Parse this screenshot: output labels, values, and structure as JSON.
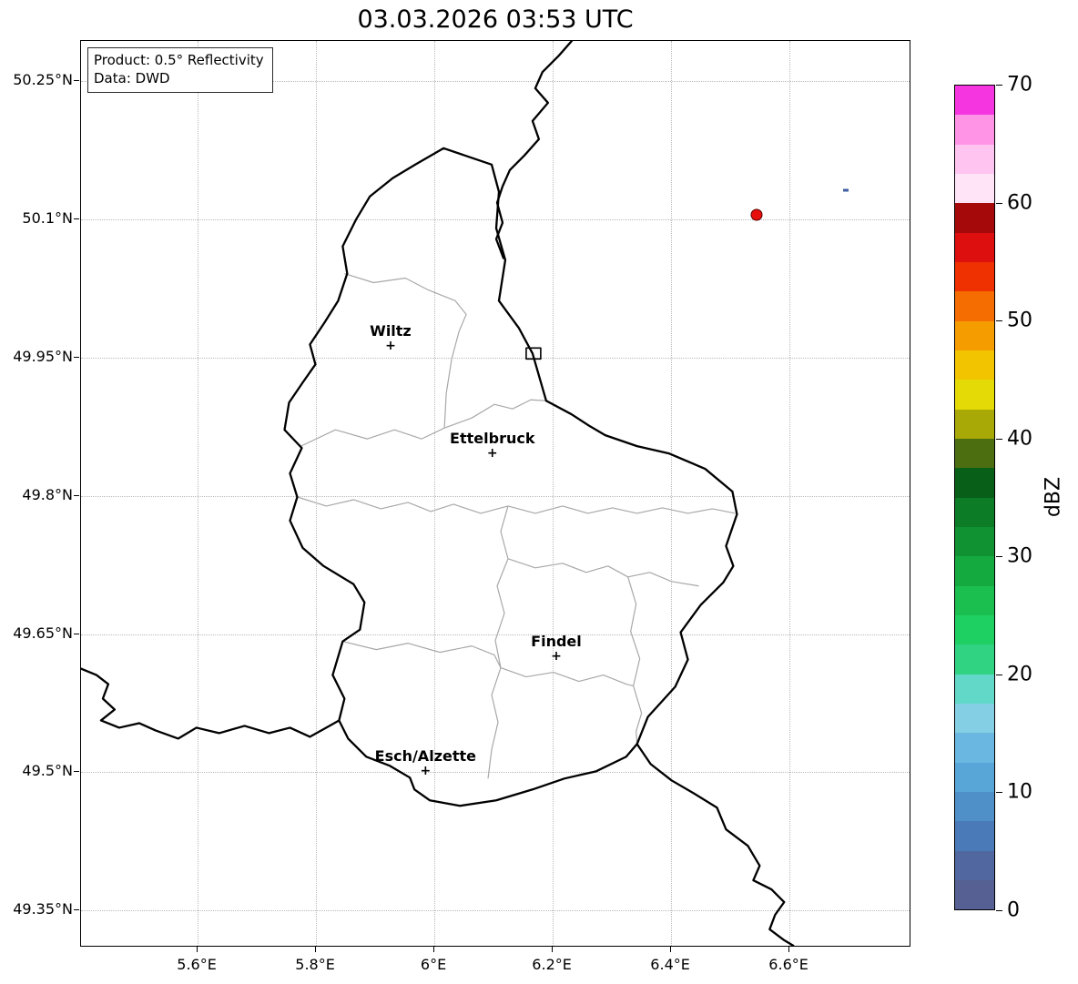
{
  "title": "03.03.2026 03:53 UTC",
  "info_box": {
    "line1": "Product: 0.5° Reflectivity",
    "line2": "Data: DWD"
  },
  "axes": {
    "x_range": [
      5.403,
      6.806
    ],
    "y_range": [
      49.31,
      50.293
    ],
    "x_ticks": [
      {
        "value": 5.6,
        "label": "5.6°E"
      },
      {
        "value": 5.8,
        "label": "5.8°E"
      },
      {
        "value": 6.0,
        "label": "6°E"
      },
      {
        "value": 6.2,
        "label": "6.2°E"
      },
      {
        "value": 6.4,
        "label": "6.4°E"
      },
      {
        "value": 6.6,
        "label": "6.6°E"
      }
    ],
    "y_ticks": [
      {
        "value": 50.25,
        "label": "50.25°N"
      },
      {
        "value": 50.1,
        "label": "50.1°N"
      },
      {
        "value": 49.95,
        "label": "49.95°N"
      },
      {
        "value": 49.8,
        "label": "49.8°N"
      },
      {
        "value": 49.65,
        "label": "49.65°N"
      },
      {
        "value": 49.5,
        "label": "49.5°N"
      },
      {
        "value": 49.35,
        "label": "49.35°N"
      }
    ],
    "grid": "dotted"
  },
  "cities": [
    {
      "name": "Wiltz",
      "lon": 5.926,
      "lat": 49.962
    },
    {
      "name": "Ettelbruck",
      "lon": 6.098,
      "lat": 49.846
    },
    {
      "name": "Findel",
      "lon": 6.206,
      "lat": 49.626
    },
    {
      "name": "Esch/Alzette",
      "lon": 5.985,
      "lat": 49.501
    }
  ],
  "radar_echoes": [
    {
      "lon": 6.545,
      "lat": 50.104,
      "shape": "circle",
      "size": 13,
      "color": "#e8100c",
      "edge": "#5a0000",
      "approx_dbz": 52
    },
    {
      "lon": 6.695,
      "lat": 50.131,
      "shape": "dash",
      "width": 6,
      "height": 3,
      "color": "#3f5fa5",
      "approx_dbz": 3
    }
  ],
  "colorbar": {
    "label": "dBZ",
    "min": 0,
    "max": 70,
    "step": 2.5,
    "ticks": [
      {
        "value": 0,
        "label": "0"
      },
      {
        "value": 10,
        "label": "10"
      },
      {
        "value": 20,
        "label": "20"
      },
      {
        "value": 30,
        "label": "30"
      },
      {
        "value": 40,
        "label": "40"
      },
      {
        "value": 50,
        "label": "50"
      },
      {
        "value": 60,
        "label": "60"
      },
      {
        "value": 70,
        "label": "70"
      }
    ],
    "colors_bottom_to_top": [
      "#566093",
      "#50689f",
      "#4a7ab8",
      "#4f90c8",
      "#58a5d8",
      "#6ab8e2",
      "#84cfe3",
      "#62d9c8",
      "#2fd382",
      "#1ecf62",
      "#1abf50",
      "#15aa40",
      "#109232",
      "#0c7c26",
      "#086018",
      "#4c6e10",
      "#a8a806",
      "#e4da05",
      "#f2c400",
      "#f59c00",
      "#f56d00",
      "#ef3000",
      "#de0f0f",
      "#a50909",
      "#ffe4f8",
      "#ffc4f0",
      "#ff94e6",
      "#f536e0"
    ]
  },
  "map": {
    "region": "Luxembourg and surroundings",
    "border_color": "#000000",
    "district_border_color": "#a8a8a8"
  }
}
